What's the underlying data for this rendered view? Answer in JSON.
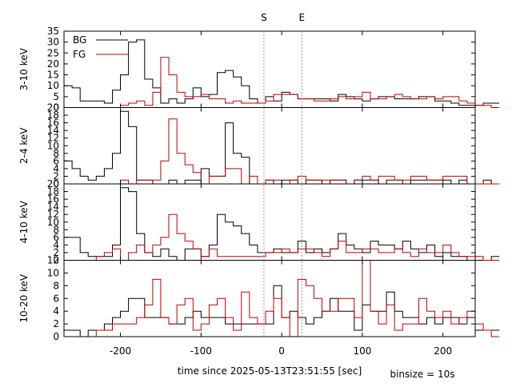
{
  "chart_data": {
    "type": "line",
    "title": "",
    "xlabel": "time since 2025-05-13T23:51:55 [sec]",
    "footnote": "binsize = 10s",
    "xlim": [
      -270,
      240
    ],
    "x_ticks": [
      -200,
      -100,
      0,
      100,
      200
    ],
    "markers": [
      {
        "label": "S",
        "x": -22
      },
      {
        "label": "E",
        "x": 25
      }
    ],
    "legend": {
      "placement": "top-left",
      "entries": [
        "BG",
        "FG"
      ]
    },
    "colors": {
      "BG": "#000000",
      "FG": "#c00000",
      "marker": "#999999"
    },
    "bin_start": -270,
    "binsize": 10,
    "panels": [
      {
        "ylabel": "3-10 keV",
        "ylim": [
          0,
          35
        ],
        "ticks": [
          0,
          5,
          10,
          15,
          20,
          25,
          30,
          35
        ],
        "show_legend": true,
        "series": [
          {
            "name": "BG",
            "values": [
              10,
              9,
              3,
              3,
              3,
              2,
              8,
              15,
              30,
              31,
              13,
              9,
              2,
              4,
              2,
              4,
              9,
              5,
              6,
              16,
              17,
              14,
              10,
              4,
              2,
              5,
              3,
              7,
              6,
              4,
              4,
              4,
              4,
              3,
              6,
              5,
              4,
              3,
              4,
              5,
              5,
              4,
              4,
              4,
              5,
              5,
              3,
              3,
              2,
              1,
              1,
              1,
              2,
              2
            ]
          },
          {
            "name": "FG",
            "values": [
              0,
              0,
              0,
              0,
              0,
              0,
              0,
              1,
              2,
              3,
              1,
              7,
              23,
              15,
              7,
              5,
              5,
              6,
              4,
              4,
              2,
              3,
              2,
              2,
              2,
              3,
              6,
              6,
              6,
              4,
              4,
              3,
              3,
              4,
              5,
              4,
              5,
              7,
              4,
              4,
              5,
              6,
              5,
              4,
              4,
              5,
              4,
              5,
              5,
              3,
              2,
              1,
              1,
              0
            ]
          }
        ]
      },
      {
        "ylabel": "2-4 keV",
        "ylim": [
          0,
          20
        ],
        "ticks": [
          0,
          2,
          4,
          6,
          8,
          10,
          12,
          14,
          16,
          18,
          20
        ],
        "show_legend": false,
        "series": [
          {
            "name": "BG",
            "values": [
              6,
              4,
              2,
              1,
              2,
              4,
              8,
              19,
              15,
              1,
              1,
              0,
              0,
              1,
              0,
              1,
              1,
              4,
              2,
              2,
              16,
              8,
              7,
              0,
              0,
              1,
              0,
              1,
              1,
              0,
              1,
              1,
              0,
              1,
              1,
              0,
              1,
              1,
              1,
              0,
              1,
              1,
              0,
              1,
              1,
              1,
              1,
              1,
              0,
              1,
              0,
              0,
              1,
              0
            ]
          },
          {
            "name": "FG",
            "values": [
              0,
              0,
              0,
              0,
              0,
              0,
              0,
              1,
              0,
              1,
              1,
              1,
              6,
              17,
              8,
              5,
              3,
              0,
              2,
              2,
              4,
              4,
              0,
              2,
              0,
              1,
              1,
              0,
              1,
              2,
              1,
              1,
              1,
              1,
              1,
              0,
              1,
              2,
              1,
              2,
              2,
              1,
              1,
              2,
              2,
              1,
              1,
              2,
              2,
              2,
              0,
              0,
              0,
              0
            ]
          }
        ]
      },
      {
        "ylabel": "4-10 keV",
        "ylim": [
          0,
          20
        ],
        "ticks": [
          0,
          2,
          4,
          6,
          8,
          10,
          12,
          14,
          16,
          18,
          20
        ],
        "show_legend": false,
        "series": [
          {
            "name": "BG",
            "values": [
              6,
              6,
              2,
              1,
              1,
              1,
              4,
              19,
              18,
              7,
              2,
              1,
              3,
              1,
              0,
              3,
              3,
              1,
              4,
              12,
              10,
              9,
              7,
              4,
              2,
              2,
              3,
              2,
              2,
              5,
              2,
              3,
              2,
              3,
              7,
              4,
              3,
              2,
              5,
              4,
              4,
              3,
              5,
              3,
              2,
              4,
              1,
              2,
              1,
              1,
              0,
              0,
              0,
              1
            ]
          },
          {
            "name": "FG",
            "values": [
              0,
              0,
              0,
              0,
              1,
              2,
              3,
              0,
              2,
              4,
              2,
              4,
              6,
              12,
              7,
              5,
              3,
              1,
              3,
              1,
              1,
              1,
              1,
              1,
              1,
              2,
              2,
              3,
              2,
              3,
              3,
              2,
              1,
              3,
              5,
              2,
              2,
              3,
              3,
              2,
              2,
              3,
              2,
              1,
              3,
              2,
              2,
              4,
              2,
              1,
              1,
              1,
              0,
              0
            ]
          }
        ]
      },
      {
        "ylabel": "10-20 keV",
        "ylim": [
          0,
          12
        ],
        "ticks": [
          0,
          2,
          4,
          6,
          8,
          10,
          12
        ],
        "show_legend": false,
        "series": [
          {
            "name": "BG",
            "values": [
              1,
              1,
              0,
              1,
              1,
              2,
              3,
              4,
              6,
              6,
              3,
              3,
              3,
              2,
              2,
              3,
              4,
              3,
              3,
              3,
              2,
              2,
              2,
              2,
              2,
              2,
              8,
              3,
              4,
              3,
              2,
              3,
              4,
              6,
              4,
              4,
              1,
              5,
              4,
              4,
              7,
              4,
              3,
              3,
              2,
              3,
              2,
              3,
              3,
              2,
              3,
              1,
              1,
              1
            ]
          },
          {
            "name": "FG",
            "values": [
              0,
              0,
              0,
              0,
              1,
              1,
              2,
              2,
              2,
              3,
              5,
              9,
              3,
              2,
              5,
              6,
              1,
              2,
              5,
              6,
              3,
              1,
              7,
              3,
              2,
              4,
              6,
              3,
              0,
              9,
              8,
              6,
              4,
              4,
              6,
              6,
              3,
              12,
              4,
              2,
              5,
              1,
              2,
              2,
              6,
              4,
              3,
              4,
              2,
              3,
              4,
              2,
              1,
              0
            ]
          }
        ]
      }
    ]
  }
}
